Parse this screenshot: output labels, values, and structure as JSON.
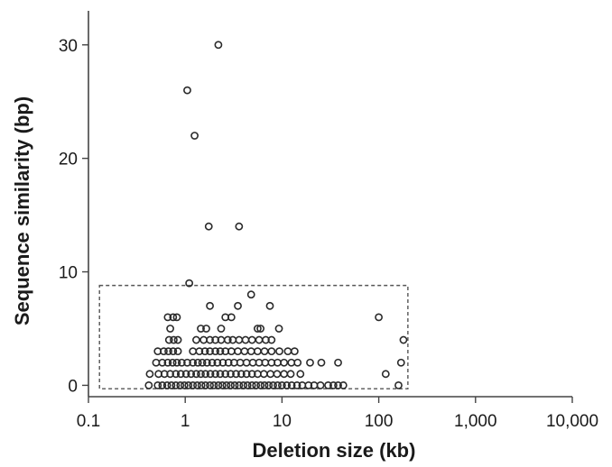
{
  "chart_data": {
    "type": "scatter",
    "xlabel": "Deletion size (kb)",
    "ylabel": "Sequence similarity (bp)",
    "x_scale": "log",
    "xlim": [
      0.1,
      10000
    ],
    "ylim": [
      -1,
      33
    ],
    "x_ticks": [
      0.1,
      1,
      10,
      100,
      1000,
      10000
    ],
    "x_tick_labels": [
      "0.1",
      "1",
      "10",
      "100",
      "1,000",
      "10,000"
    ],
    "y_ticks": [
      0,
      10,
      20,
      30
    ],
    "y_tick_labels": [
      "0",
      "10",
      "20",
      "30"
    ],
    "grid": false,
    "legend": "none",
    "marker": "open-circle",
    "highlight_box": {
      "x": [
        0.13,
        200
      ],
      "y": [
        -0.3,
        8.8
      ]
    },
    "points": [
      [
        2.2,
        30
      ],
      [
        1.05,
        26
      ],
      [
        1.25,
        22
      ],
      [
        1.75,
        14
      ],
      [
        3.6,
        14
      ],
      [
        1.1,
        9
      ],
      [
        1.8,
        7
      ],
      [
        4.8,
        8
      ],
      [
        3.5,
        7
      ],
      [
        7.5,
        7
      ],
      [
        100,
        6
      ],
      [
        0.66,
        6
      ],
      [
        0.75,
        6
      ],
      [
        0.82,
        6
      ],
      [
        2.6,
        6
      ],
      [
        3.0,
        6
      ],
      [
        5.6,
        5
      ],
      [
        9.3,
        5
      ],
      [
        180,
        4
      ],
      [
        6.0,
        5
      ],
      [
        0.7,
        5
      ],
      [
        1.45,
        5
      ],
      [
        1.65,
        5
      ],
      [
        2.35,
        5
      ],
      [
        0.68,
        4
      ],
      [
        0.76,
        4
      ],
      [
        0.84,
        4
      ],
      [
        1.3,
        4
      ],
      [
        1.55,
        4
      ],
      [
        1.8,
        4
      ],
      [
        2.05,
        4
      ],
      [
        2.35,
        4
      ],
      [
        2.75,
        4
      ],
      [
        3.1,
        4
      ],
      [
        3.6,
        4
      ],
      [
        4.2,
        4
      ],
      [
        4.9,
        4
      ],
      [
        5.8,
        4
      ],
      [
        6.8,
        4
      ],
      [
        7.8,
        4
      ],
      [
        0.52,
        3
      ],
      [
        0.6,
        3
      ],
      [
        0.67,
        3
      ],
      [
        0.75,
        3
      ],
      [
        0.84,
        3
      ],
      [
        1.2,
        3
      ],
      [
        1.4,
        3
      ],
      [
        1.6,
        3
      ],
      [
        1.8,
        3
      ],
      [
        2.05,
        3
      ],
      [
        2.3,
        3
      ],
      [
        2.6,
        3
      ],
      [
        3.0,
        3
      ],
      [
        3.5,
        3
      ],
      [
        4.1,
        3
      ],
      [
        4.8,
        3
      ],
      [
        5.6,
        3
      ],
      [
        6.6,
        3
      ],
      [
        7.8,
        3
      ],
      [
        9.4,
        3
      ],
      [
        11.5,
        3
      ],
      [
        13.5,
        3
      ],
      [
        0.5,
        2
      ],
      [
        0.58,
        2
      ],
      [
        0.66,
        2
      ],
      [
        0.74,
        2
      ],
      [
        0.82,
        2
      ],
      [
        0.92,
        2
      ],
      [
        1.05,
        2
      ],
      [
        1.2,
        2
      ],
      [
        1.35,
        2
      ],
      [
        1.5,
        2
      ],
      [
        1.68,
        2
      ],
      [
        1.9,
        2
      ],
      [
        2.15,
        2
      ],
      [
        2.45,
        2
      ],
      [
        2.8,
        2
      ],
      [
        3.2,
        2
      ],
      [
        3.7,
        2
      ],
      [
        4.3,
        2
      ],
      [
        5.0,
        2
      ],
      [
        5.8,
        2
      ],
      [
        6.7,
        2
      ],
      [
        7.8,
        2
      ],
      [
        9.0,
        2
      ],
      [
        10.5,
        2
      ],
      [
        12.5,
        2
      ],
      [
        14.5,
        2
      ],
      [
        19.5,
        2
      ],
      [
        25.5,
        2
      ],
      [
        38,
        2
      ],
      [
        170,
        2
      ],
      [
        0.43,
        1
      ],
      [
        0.53,
        1
      ],
      [
        0.61,
        1
      ],
      [
        0.7,
        1
      ],
      [
        0.8,
        1
      ],
      [
        0.9,
        1
      ],
      [
        1.02,
        1
      ],
      [
        1.15,
        1
      ],
      [
        1.3,
        1
      ],
      [
        1.45,
        1
      ],
      [
        1.62,
        1
      ],
      [
        1.82,
        1
      ],
      [
        2.05,
        1
      ],
      [
        2.3,
        1
      ],
      [
        2.6,
        1
      ],
      [
        2.95,
        1
      ],
      [
        3.35,
        1
      ],
      [
        3.8,
        1
      ],
      [
        4.3,
        1
      ],
      [
        4.9,
        1
      ],
      [
        5.6,
        1
      ],
      [
        6.5,
        1
      ],
      [
        7.6,
        1
      ],
      [
        8.9,
        1
      ],
      [
        10.5,
        1
      ],
      [
        12.3,
        1
      ],
      [
        15.5,
        1
      ],
      [
        118,
        1
      ],
      [
        0.42,
        0
      ],
      [
        0.52,
        0
      ],
      [
        0.58,
        0
      ],
      [
        0.65,
        0
      ],
      [
        0.72,
        0
      ],
      [
        0.8,
        0
      ],
      [
        0.89,
        0
      ],
      [
        0.98,
        0
      ],
      [
        1.08,
        0
      ],
      [
        1.2,
        0
      ],
      [
        1.33,
        0
      ],
      [
        1.47,
        0
      ],
      [
        1.62,
        0
      ],
      [
        1.8,
        0
      ],
      [
        1.98,
        0
      ],
      [
        2.2,
        0
      ],
      [
        2.42,
        0
      ],
      [
        2.67,
        0
      ],
      [
        2.95,
        0
      ],
      [
        3.25,
        0
      ],
      [
        3.6,
        0
      ],
      [
        4.0,
        0
      ],
      [
        4.4,
        0
      ],
      [
        4.9,
        0
      ],
      [
        5.4,
        0
      ],
      [
        6.0,
        0
      ],
      [
        6.6,
        0
      ],
      [
        7.3,
        0
      ],
      [
        8.1,
        0
      ],
      [
        9.0,
        0
      ],
      [
        10.0,
        0
      ],
      [
        11.2,
        0
      ],
      [
        12.6,
        0
      ],
      [
        14.3,
        0
      ],
      [
        16.2,
        0
      ],
      [
        18.8,
        0
      ],
      [
        21.5,
        0
      ],
      [
        25,
        0
      ],
      [
        30,
        0
      ],
      [
        34,
        0
      ],
      [
        38,
        0
      ],
      [
        43,
        0
      ],
      [
        160,
        0
      ]
    ]
  }
}
